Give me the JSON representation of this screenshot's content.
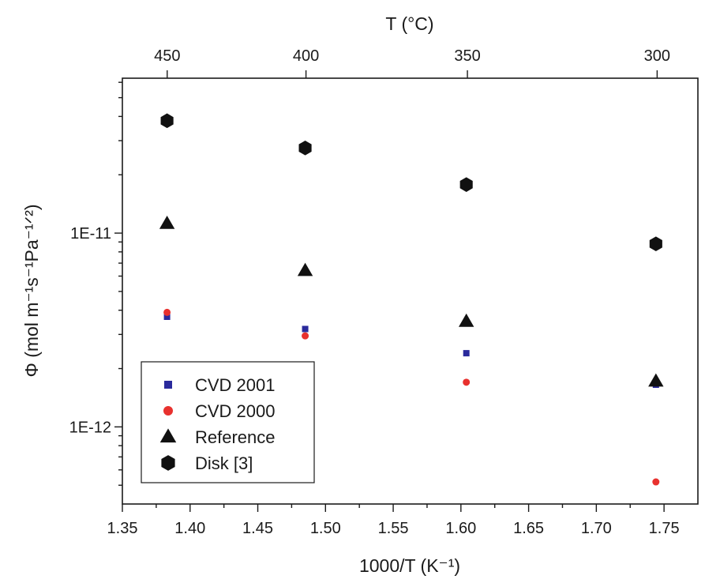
{
  "chart_data": {
    "type": "scatter",
    "xlabel": "1000/T (K⁻¹)",
    "ylabel": "Φ (mol m⁻¹s⁻¹Pa⁻¹ᐟ²)",
    "x2label": "T (°C)",
    "xlim": [
      1.35,
      1.775
    ],
    "ylim": [
      4e-13,
      6.3e-11
    ],
    "yscale": "log",
    "grid": false,
    "legend_position": "bottom-left",
    "x_ticks": [
      1.35,
      1.4,
      1.45,
      1.5,
      1.55,
      1.6,
      1.65,
      1.7,
      1.75
    ],
    "x_tick_labels": [
      "1.35",
      "1.40",
      "1.45",
      "1.50",
      "1.55",
      "1.60",
      "1.65",
      "1.70",
      "1.75"
    ],
    "y_ticks": [
      1e-12,
      1e-11
    ],
    "y_tick_labels": [
      "1E-12",
      "1E-11"
    ],
    "top_ticks": [
      {
        "label": "450",
        "x": 1.3831
      },
      {
        "label": "400",
        "x": 1.4856
      },
      {
        "label": "350",
        "x": 1.6048
      },
      {
        "label": "300",
        "x": 1.7449
      }
    ],
    "series": [
      {
        "name": "CVD 2001",
        "marker": "square",
        "color": "#2a2a9c",
        "points": [
          [
            1.383,
            3.7e-12
          ],
          [
            1.485,
            3.2e-12
          ],
          [
            1.604,
            2.4e-12
          ],
          [
            1.744,
            1.65e-12
          ]
        ]
      },
      {
        "name": "CVD 2000",
        "marker": "circle",
        "color": "#e8312e",
        "points": [
          [
            1.383,
            3.9e-12
          ],
          [
            1.485,
            2.95e-12
          ],
          [
            1.604,
            1.7e-12
          ],
          [
            1.744,
            5.2e-13
          ]
        ]
      },
      {
        "name": "Reference",
        "marker": "triangle",
        "color": "#111111",
        "points": [
          [
            1.383,
            1.12e-11
          ],
          [
            1.485,
            6.4e-12
          ],
          [
            1.604,
            3.5e-12
          ],
          [
            1.744,
            1.72e-12
          ]
        ]
      },
      {
        "name": "Disk [3]",
        "marker": "hexagon",
        "color": "#111111",
        "points": [
          [
            1.383,
            3.8e-11
          ],
          [
            1.485,
            2.75e-11
          ],
          [
            1.604,
            1.78e-11
          ],
          [
            1.744,
            8.8e-12
          ]
        ]
      }
    ]
  }
}
